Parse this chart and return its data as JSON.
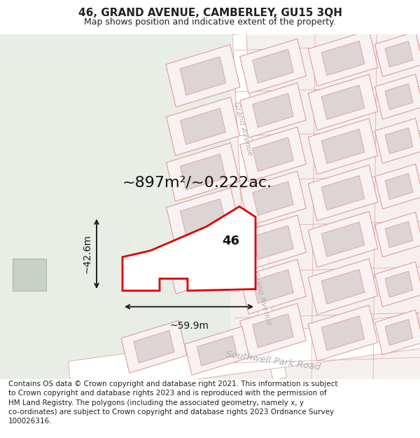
{
  "title": "46, GRAND AVENUE, CAMBERLEY, GU15 3QH",
  "subtitle": "Map shows position and indicative extent of the property.",
  "footer": "Contains OS data © Crown copyright and database right 2021. This information is subject\nto Crown copyright and database rights 2023 and is reproduced with the permission of\nHM Land Registry. The polygons (including the associated geometry, namely x, y\nco-ordinates) are subject to Crown copyright and database rights 2023 Ordnance Survey\n100026316.",
  "area_label": "~897m²/~0.222ac.",
  "property_number": "46",
  "width_label": "~59.9m",
  "height_label": "~42.6m",
  "left_bg": "#e8ede8",
  "right_bg": "#f5f0f0",
  "building_outline": "#e8a0a0",
  "building_inner_fill": "#e0d8d8",
  "building_outer_fill": "#f5f0f0",
  "highlight_outline": "#dd0000",
  "highlight_fill": "#ffffff",
  "road_fill": "#ffffff",
  "road_outline": "#e0b0b0",
  "text_color": "#222222",
  "dim_color": "#1a1a1a",
  "road_label_color": "#b0b0b0",
  "title_fontsize": 11,
  "subtitle_fontsize": 9,
  "footer_fontsize": 7.5,
  "area_fontsize": 16,
  "dim_fontsize": 10,
  "road_label_fontsize": 8
}
